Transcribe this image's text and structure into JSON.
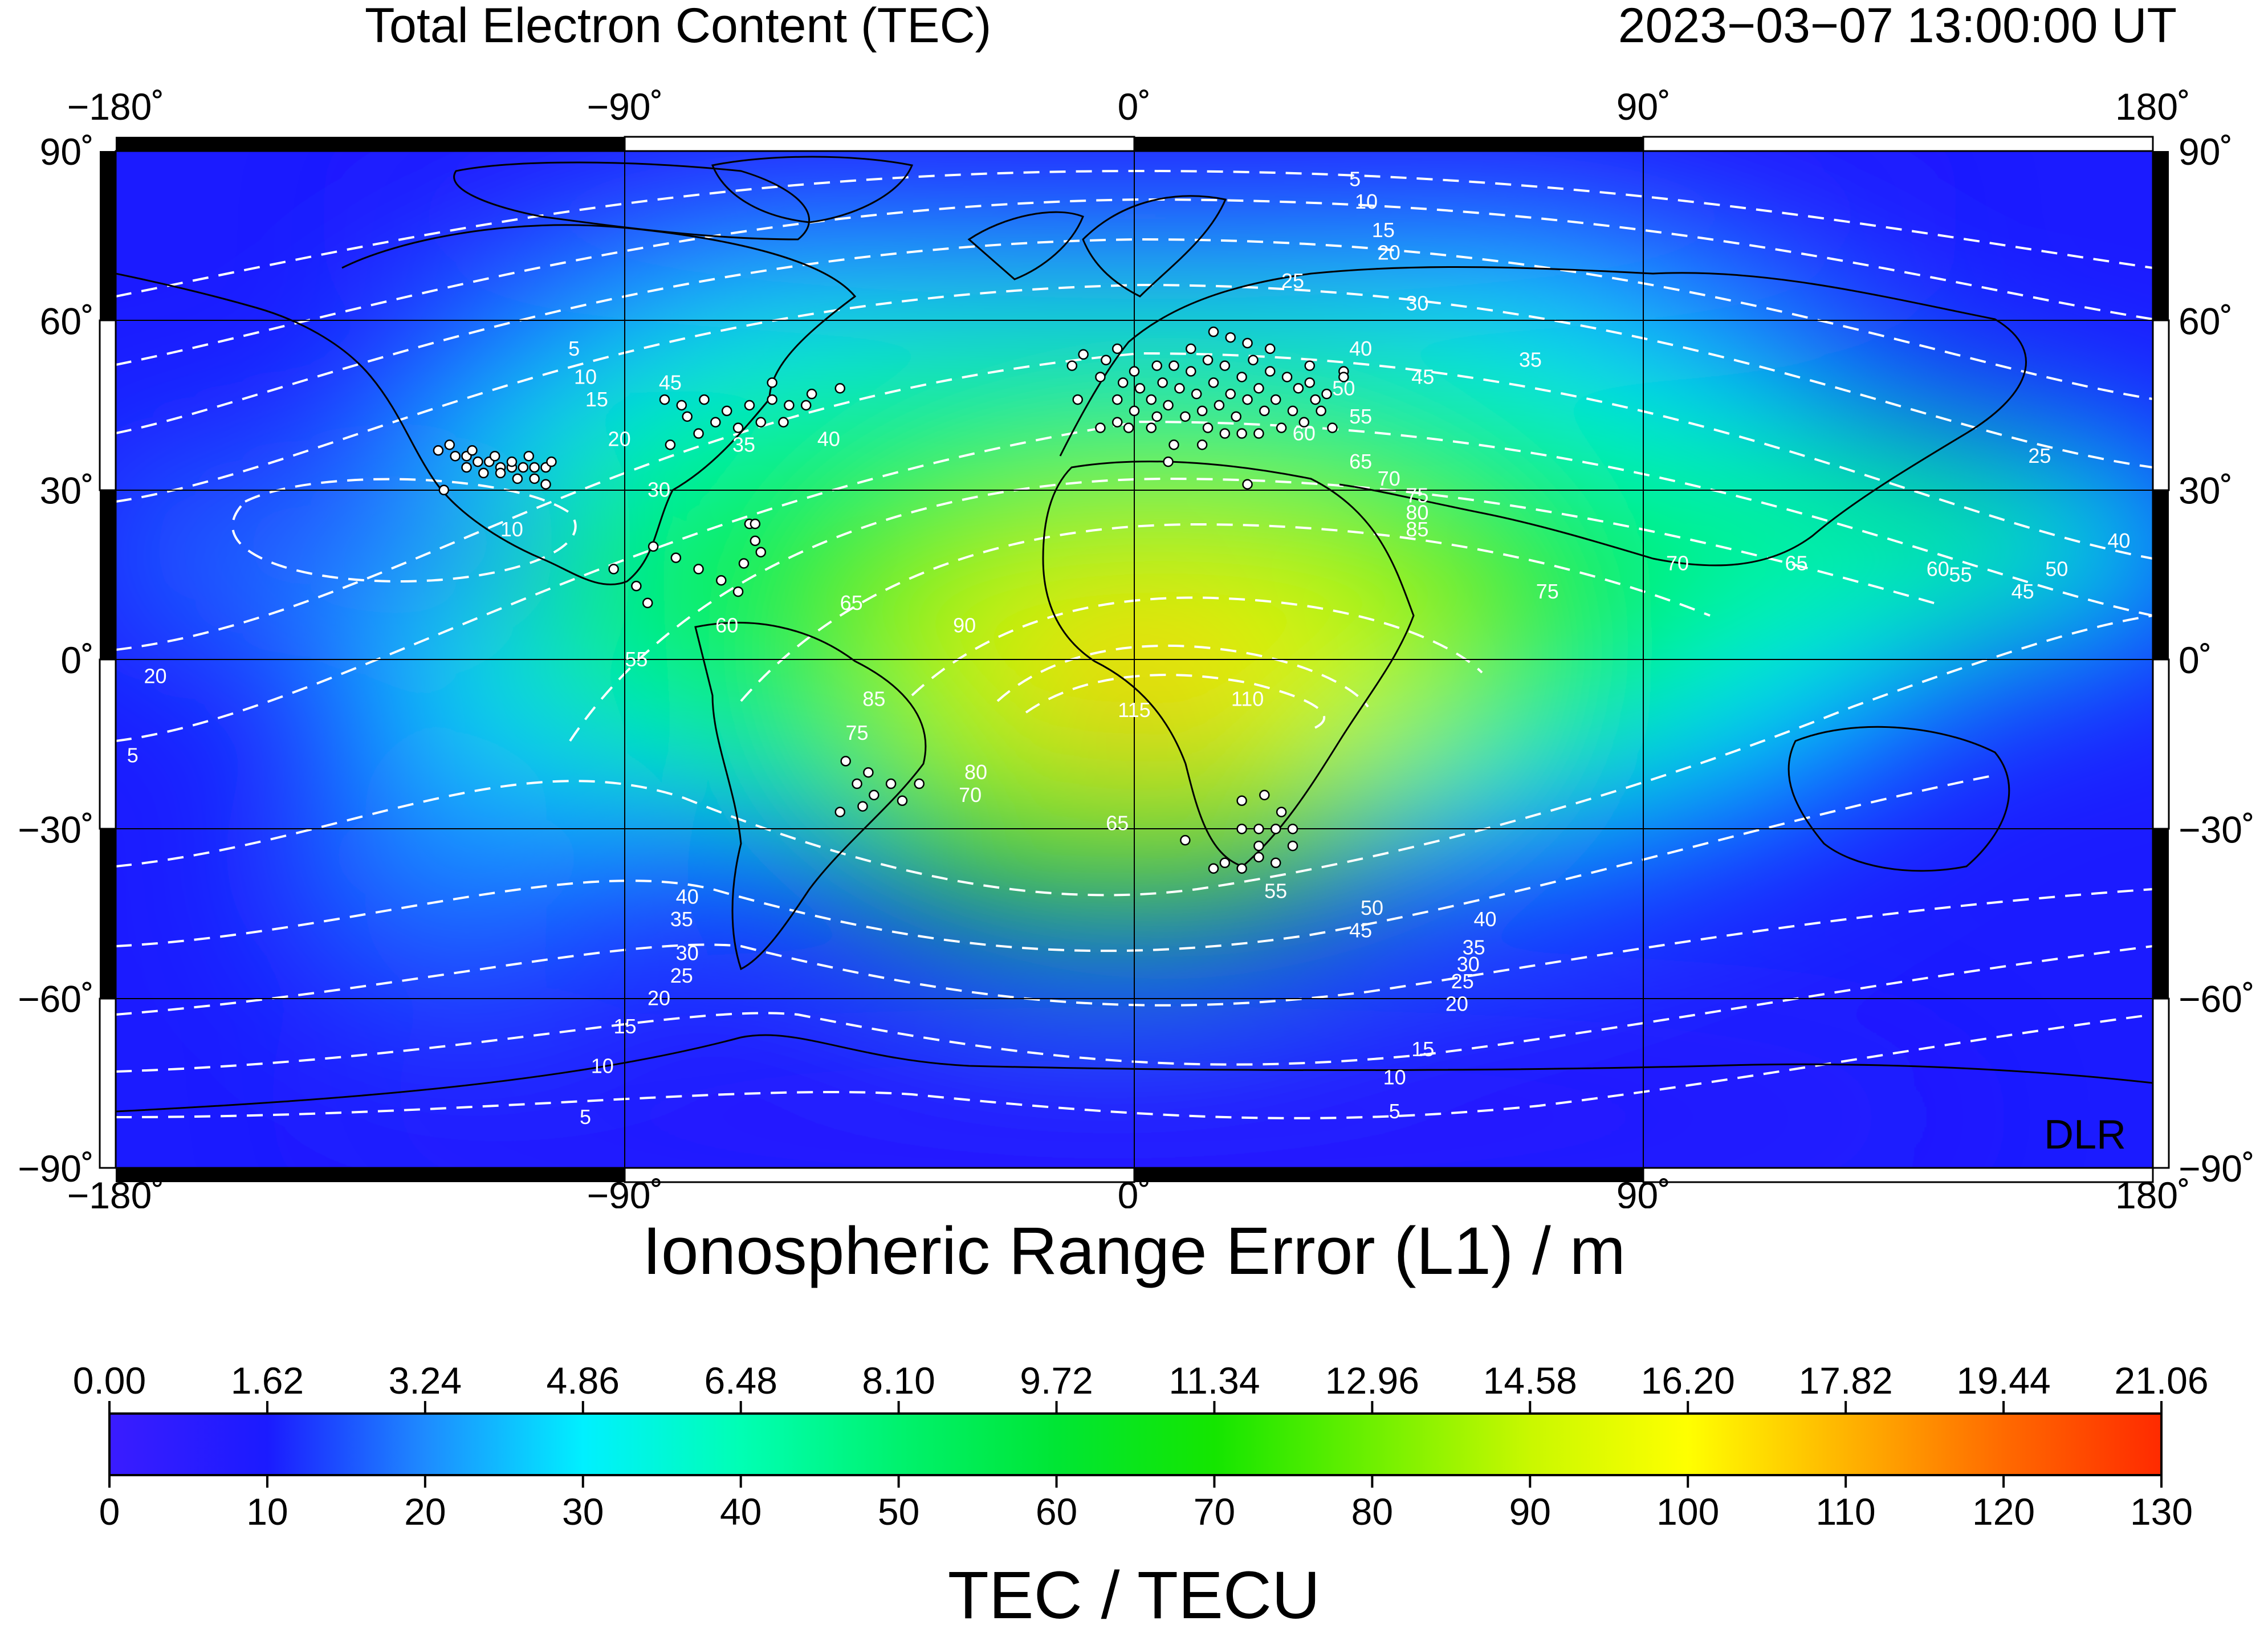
{
  "header": {
    "title": "Total Electron Content (TEC)",
    "datetime": "2023−03−07  13:00:00 UT"
  },
  "map": {
    "projection": "equirectangular",
    "extent": {
      "lon": [
        -180,
        180
      ],
      "lat": [
        -90,
        90
      ]
    },
    "lon_ticks": [
      "−180˚",
      "−90˚",
      "0˚",
      "90˚",
      "180˚"
    ],
    "lon_tick_values": [
      -180,
      -90,
      0,
      90,
      180
    ],
    "lat_ticks": [
      "90˚",
      "60˚",
      "30˚",
      "0˚",
      "−30˚",
      "−60˚",
      "−90˚"
    ],
    "lat_tick_values": [
      90,
      60,
      30,
      0,
      -30,
      -60,
      -90
    ],
    "grid": true,
    "contour_style": "white dashed",
    "contour_labels": [
      {
        "text": "5",
        "lon": 39,
        "lat": 85
      },
      {
        "text": "10",
        "lon": 41,
        "lat": 81
      },
      {
        "text": "15",
        "lon": 44,
        "lat": 76
      },
      {
        "text": "20",
        "lon": 45,
        "lat": 72
      },
      {
        "text": "25",
        "lon": 28,
        "lat": 67
      },
      {
        "text": "30",
        "lon": 50,
        "lat": 63
      },
      {
        "text": "40",
        "lon": 40,
        "lat": 55
      },
      {
        "text": "35",
        "lon": 70,
        "lat": 53
      },
      {
        "text": "45",
        "lon": 51,
        "lat": 50
      },
      {
        "text": "50",
        "lon": 37,
        "lat": 48
      },
      {
        "text": "55",
        "lon": 40,
        "lat": 43
      },
      {
        "text": "60",
        "lon": 30,
        "lat": 40
      },
      {
        "text": "65",
        "lon": 40,
        "lat": 35
      },
      {
        "text": "70",
        "lon": 45,
        "lat": 32
      },
      {
        "text": "75",
        "lon": 50,
        "lat": 29
      },
      {
        "text": "80",
        "lon": 50,
        "lat": 26
      },
      {
        "text": "85",
        "lon": 50,
        "lat": 23
      },
      {
        "text": "45",
        "lon": -82,
        "lat": 49
      },
      {
        "text": "5",
        "lon": -99,
        "lat": 55
      },
      {
        "text": "10",
        "lon": -97,
        "lat": 50
      },
      {
        "text": "15",
        "lon": -95,
        "lat": 46
      },
      {
        "text": "20",
        "lon": -91,
        "lat": 39
      },
      {
        "text": "35",
        "lon": -69,
        "lat": 38
      },
      {
        "text": "40",
        "lon": -54,
        "lat": 39
      },
      {
        "text": "30",
        "lon": -84,
        "lat": 30
      },
      {
        "text": "10",
        "lon": -110,
        "lat": 23
      },
      {
        "text": "25",
        "lon": 160,
        "lat": 36
      },
      {
        "text": "70",
        "lon": 96,
        "lat": 17
      },
      {
        "text": "65",
        "lon": 117,
        "lat": 17
      },
      {
        "text": "60",
        "lon": 142,
        "lat": 16
      },
      {
        "text": "55",
        "lon": 146,
        "lat": 15
      },
      {
        "text": "50",
        "lon": 163,
        "lat": 16
      },
      {
        "text": "45",
        "lon": 157,
        "lat": 12
      },
      {
        "text": "40",
        "lon": 174,
        "lat": 21
      },
      {
        "text": "75",
        "lon": 73,
        "lat": 12
      },
      {
        "text": "90",
        "lon": -30,
        "lat": 6
      },
      {
        "text": "65",
        "lon": -50,
        "lat": 10
      },
      {
        "text": "60",
        "lon": -72,
        "lat": 6
      },
      {
        "text": "55",
        "lon": -88,
        "lat": 0
      },
      {
        "text": "20",
        "lon": -173,
        "lat": -3
      },
      {
        "text": "5",
        "lon": -177,
        "lat": -17
      },
      {
        "text": "85",
        "lon": -46,
        "lat": -7
      },
      {
        "text": "75",
        "lon": -49,
        "lat": -13
      },
      {
        "text": "115",
        "lon": 0,
        "lat": -9
      },
      {
        "text": "110",
        "lon": 20,
        "lat": -7
      },
      {
        "text": "80",
        "lon": -28,
        "lat": -20
      },
      {
        "text": "70",
        "lon": -29,
        "lat": -24
      },
      {
        "text": "65",
        "lon": -3,
        "lat": -29
      },
      {
        "text": "55",
        "lon": 25,
        "lat": -41
      },
      {
        "text": "50",
        "lon": 42,
        "lat": -44
      },
      {
        "text": "45",
        "lon": 40,
        "lat": -48
      },
      {
        "text": "40",
        "lon": 62,
        "lat": -46
      },
      {
        "text": "35",
        "lon": 60,
        "lat": -51
      },
      {
        "text": "30",
        "lon": 59,
        "lat": -54
      },
      {
        "text": "25",
        "lon": 58,
        "lat": -57
      },
      {
        "text": "20",
        "lon": 57,
        "lat": -61
      },
      {
        "text": "15",
        "lon": 51,
        "lat": -69
      },
      {
        "text": "10",
        "lon": 46,
        "lat": -74
      },
      {
        "text": "5",
        "lon": 46,
        "lat": -80
      },
      {
        "text": "40",
        "lon": -79,
        "lat": -42
      },
      {
        "text": "35",
        "lon": -80,
        "lat": -46
      },
      {
        "text": "30",
        "lon": -79,
        "lat": -52
      },
      {
        "text": "25",
        "lon": -80,
        "lat": -56
      },
      {
        "text": "20",
        "lon": -84,
        "lat": -60
      },
      {
        "text": "15",
        "lon": -90,
        "lat": -65
      },
      {
        "text": "10",
        "lon": -94,
        "lat": -72
      },
      {
        "text": "5",
        "lon": -97,
        "lat": -81
      }
    ],
    "stations": [
      [
        -123,
        37
      ],
      [
        -120,
        36
      ],
      [
        -118,
        36
      ],
      [
        -116,
        35
      ],
      [
        -114,
        35
      ],
      [
        -112,
        34
      ],
      [
        -110,
        34
      ],
      [
        -108,
        34
      ],
      [
        -106,
        34
      ],
      [
        -104,
        34
      ],
      [
        -118,
        34
      ],
      [
        -115,
        33
      ],
      [
        -112,
        33
      ],
      [
        -109,
        32
      ],
      [
        -106,
        32
      ],
      [
        -104,
        31
      ],
      [
        -121,
        38
      ],
      [
        -117,
        37
      ],
      [
        -113,
        36
      ],
      [
        -110,
        35
      ],
      [
        -107,
        36
      ],
      [
        -103,
        35
      ],
      [
        -122,
        30
      ],
      [
        -80,
        45
      ],
      [
        -76,
        46
      ],
      [
        -72,
        44
      ],
      [
        -68,
        45
      ],
      [
        -64,
        46
      ],
      [
        -61,
        45
      ],
      [
        -57,
        47
      ],
      [
        -52,
        48
      ],
      [
        -79,
        43
      ],
      [
        -74,
        42
      ],
      [
        -70,
        41
      ],
      [
        -66,
        42
      ],
      [
        -62,
        42
      ],
      [
        -82,
        38
      ],
      [
        -77,
        40
      ],
      [
        -64,
        49
      ],
      [
        -58,
        45
      ],
      [
        -83,
        46
      ],
      [
        -85,
        20
      ],
      [
        -81,
        18
      ],
      [
        -77,
        16
      ],
      [
        -73,
        14
      ],
      [
        -69,
        17
      ],
      [
        -66,
        19
      ],
      [
        -67,
        21
      ],
      [
        -92,
        16
      ],
      [
        -88,
        13
      ],
      [
        -86,
        10
      ],
      [
        -70,
        12
      ],
      [
        -68,
        24
      ],
      [
        -67,
        24
      ],
      [
        -51,
        -18
      ],
      [
        -49,
        -22
      ],
      [
        -46,
        -24
      ],
      [
        -43,
        -22
      ],
      [
        -41,
        -25
      ],
      [
        -38,
        -22
      ],
      [
        -48,
        -26
      ],
      [
        -52,
        -27
      ],
      [
        -47,
        -20
      ],
      [
        9,
        -32
      ],
      [
        19,
        -25
      ],
      [
        23,
        -24
      ],
      [
        26,
        -27
      ],
      [
        19,
        -30
      ],
      [
        22,
        -30
      ],
      [
        25,
        -30
      ],
      [
        28,
        -30
      ],
      [
        16,
        -36
      ],
      [
        19,
        -37
      ],
      [
        22,
        -35
      ],
      [
        25,
        -36
      ],
      [
        28,
        -33
      ],
      [
        22,
        -33
      ],
      [
        14,
        -37
      ],
      [
        -11,
        52
      ],
      [
        -10,
        46
      ],
      [
        -6,
        50
      ],
      [
        -5,
        53
      ],
      [
        -3,
        46
      ],
      [
        -2,
        49
      ],
      [
        0,
        51
      ],
      [
        1,
        48
      ],
      [
        3,
        46
      ],
      [
        4,
        52
      ],
      [
        5,
        49
      ],
      [
        6,
        45
      ],
      [
        7,
        52
      ],
      [
        8,
        48
      ],
      [
        9,
        43
      ],
      [
        10,
        51
      ],
      [
        11,
        47
      ],
      [
        12,
        44
      ],
      [
        13,
        53
      ],
      [
        14,
        49
      ],
      [
        15,
        45
      ],
      [
        16,
        52
      ],
      [
        17,
        47
      ],
      [
        18,
        43
      ],
      [
        19,
        50
      ],
      [
        20,
        46
      ],
      [
        21,
        53
      ],
      [
        22,
        48
      ],
      [
        23,
        44
      ],
      [
        24,
        51
      ],
      [
        25,
        46
      ],
      [
        26,
        41
      ],
      [
        27,
        50
      ],
      [
        28,
        44
      ],
      [
        29,
        48
      ],
      [
        31,
        52
      ],
      [
        32,
        46
      ],
      [
        33,
        44
      ],
      [
        35,
        41
      ],
      [
        37,
        51
      ],
      [
        19,
        40
      ],
      [
        16,
        40
      ],
      [
        6,
        35
      ],
      [
        -6,
        41
      ],
      [
        -1,
        41
      ],
      [
        3,
        41
      ],
      [
        13,
        41
      ],
      [
        22,
        40
      ],
      [
        30,
        42
      ],
      [
        -3,
        42
      ],
      [
        10,
        55
      ],
      [
        17,
        57
      ],
      [
        14,
        58
      ],
      [
        20,
        56
      ],
      [
        24,
        55
      ],
      [
        12,
        38
      ],
      [
        4,
        43
      ],
      [
        37,
        50
      ],
      [
        34,
        47
      ],
      [
        31,
        49
      ],
      [
        -9,
        54
      ],
      [
        0,
        44
      ],
      [
        7,
        38
      ],
      [
        -3,
        55
      ],
      [
        20,
        31
      ]
    ]
  },
  "mark": "DLR",
  "colorbar": {
    "range_title": "Ionospheric Range Error (L1) / m",
    "unit_title": "TEC / TECU",
    "range_ticks": [
      "0.00",
      "1.62",
      "3.24",
      "4.86",
      "6.48",
      "8.10",
      "9.72",
      "11.34",
      "12.96",
      "14.58",
      "16.20",
      "17.82",
      "19.44",
      "21.06"
    ],
    "tec_ticks": [
      "0",
      "10",
      "20",
      "30",
      "40",
      "50",
      "60",
      "70",
      "80",
      "90",
      "100",
      "110",
      "120",
      "130"
    ],
    "tec_range": [
      0,
      130
    ],
    "colors": [
      {
        "tec": 0,
        "hex": "#3a1cff"
      },
      {
        "tec": 10,
        "hex": "#1b1bff"
      },
      {
        "tec": 20,
        "hex": "#1e8bff"
      },
      {
        "tec": 30,
        "hex": "#00f0ff"
      },
      {
        "tec": 40,
        "hex": "#00ffb4"
      },
      {
        "tec": 50,
        "hex": "#00f26e"
      },
      {
        "tec": 60,
        "hex": "#00e634"
      },
      {
        "tec": 70,
        "hex": "#14e600"
      },
      {
        "tec": 80,
        "hex": "#6ef000"
      },
      {
        "tec": 90,
        "hex": "#c9f800"
      },
      {
        "tec": 100,
        "hex": "#ffff00"
      },
      {
        "tec": 110,
        "hex": "#ffb400"
      },
      {
        "tec": 120,
        "hex": "#ff6a00"
      },
      {
        "tec": 130,
        "hex": "#ff2a00"
      }
    ]
  }
}
